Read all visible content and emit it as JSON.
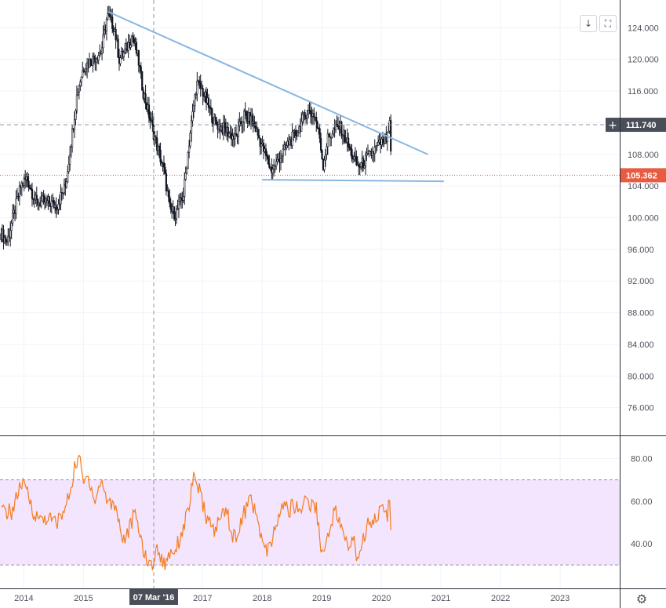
{
  "chart_data": [
    {
      "type": "candlestick",
      "series_name": "",
      "x_axis": {
        "ticks": [
          "2014",
          "2015",
          "2016",
          "2017",
          "2018",
          "2019",
          "2020",
          "2021",
          "2022",
          "2023"
        ],
        "range": [
          "2013.6",
          "2024.0"
        ]
      },
      "y_axis": {
        "ticks": [
          "76.000",
          "80.000",
          "84.000",
          "88.000",
          "92.000",
          "96.000",
          "100.000",
          "104.000",
          "108.000",
          "112.000",
          "116.000",
          "120.000",
          "124.000"
        ],
        "range": [
          72.5,
          127.5
        ]
      },
      "anchors": [
        {
          "t": 2013.62,
          "v": 98
        },
        {
          "t": 2013.72,
          "v": 97
        },
        {
          "t": 2013.85,
          "v": 101
        },
        {
          "t": 2013.95,
          "v": 104
        },
        {
          "t": 2014.05,
          "v": 105
        },
        {
          "t": 2014.2,
          "v": 102
        },
        {
          "t": 2014.4,
          "v": 102
        },
        {
          "t": 2014.55,
          "v": 101.5
        },
        {
          "t": 2014.7,
          "v": 104
        },
        {
          "t": 2014.8,
          "v": 110
        },
        {
          "t": 2014.9,
          "v": 116
        },
        {
          "t": 2015.0,
          "v": 119
        },
        {
          "t": 2015.15,
          "v": 120
        },
        {
          "t": 2015.3,
          "v": 121
        },
        {
          "t": 2015.4,
          "v": 125.5
        },
        {
          "t": 2015.52,
          "v": 124
        },
        {
          "t": 2015.6,
          "v": 120
        },
        {
          "t": 2015.7,
          "v": 121
        },
        {
          "t": 2015.82,
          "v": 123
        },
        {
          "t": 2015.92,
          "v": 120
        },
        {
          "t": 2016.0,
          "v": 116
        },
        {
          "t": 2016.1,
          "v": 113
        },
        {
          "t": 2016.2,
          "v": 110
        },
        {
          "t": 2016.35,
          "v": 106
        },
        {
          "t": 2016.45,
          "v": 101
        },
        {
          "t": 2016.55,
          "v": 100.5
        },
        {
          "t": 2016.68,
          "v": 103
        },
        {
          "t": 2016.78,
          "v": 110
        },
        {
          "t": 2016.9,
          "v": 117
        },
        {
          "t": 2017.0,
          "v": 116
        },
        {
          "t": 2017.2,
          "v": 112
        },
        {
          "t": 2017.4,
          "v": 111
        },
        {
          "t": 2017.55,
          "v": 110
        },
        {
          "t": 2017.7,
          "v": 113
        },
        {
          "t": 2017.85,
          "v": 112
        },
        {
          "t": 2017.95,
          "v": 110
        },
        {
          "t": 2018.05,
          "v": 108
        },
        {
          "t": 2018.15,
          "v": 106
        },
        {
          "t": 2018.25,
          "v": 107
        },
        {
          "t": 2018.45,
          "v": 109.5
        },
        {
          "t": 2018.6,
          "v": 111
        },
        {
          "t": 2018.75,
          "v": 113.5
        },
        {
          "t": 2018.88,
          "v": 113
        },
        {
          "t": 2018.97,
          "v": 110
        },
        {
          "t": 2019.02,
          "v": 106.5
        },
        {
          "t": 2019.1,
          "v": 110
        },
        {
          "t": 2019.2,
          "v": 111
        },
        {
          "t": 2019.3,
          "v": 111.5
        },
        {
          "t": 2019.4,
          "v": 110
        },
        {
          "t": 2019.5,
          "v": 108
        },
        {
          "t": 2019.6,
          "v": 106.5
        },
        {
          "t": 2019.68,
          "v": 106.8
        },
        {
          "t": 2019.8,
          "v": 107.8
        },
        {
          "t": 2019.92,
          "v": 108.8
        },
        {
          "t": 2020.0,
          "v": 109.5
        },
        {
          "t": 2020.1,
          "v": 110
        },
        {
          "t": 2020.14,
          "v": 111.7
        },
        {
          "t": 2020.17,
          "v": 105.4
        }
      ],
      "trendlines": [
        {
          "from": {
            "t": 2015.42,
            "v": 126.0
          },
          "to": {
            "t": 2020.78,
            "v": 108.0
          }
        },
        {
          "from": {
            "t": 2018.0,
            "v": 104.8
          },
          "to": {
            "t": 2021.05,
            "v": 104.6
          }
        }
      ],
      "price_lines": [
        {
          "value": 111.74,
          "label": "111.740",
          "style": "crosshair"
        },
        {
          "value": 105.362,
          "label": "105.362",
          "style": "last-price"
        }
      ],
      "crosshair_x_label": "07 Mar '16",
      "crosshair_t": 2016.18
    },
    {
      "type": "line",
      "indicator": "RSI",
      "y_axis": {
        "ticks": [
          "40.00",
          "60.00",
          "80.00"
        ],
        "range": [
          19,
          90.5
        ]
      },
      "band": {
        "lower": 30,
        "upper": 70
      },
      "anchors": [
        {
          "t": 2013.62,
          "v": 55
        },
        {
          "t": 2013.8,
          "v": 55
        },
        {
          "t": 2013.95,
          "v": 68
        },
        {
          "t": 2014.05,
          "v": 65
        },
        {
          "t": 2014.2,
          "v": 52
        },
        {
          "t": 2014.4,
          "v": 52
        },
        {
          "t": 2014.55,
          "v": 50
        },
        {
          "t": 2014.68,
          "v": 55
        },
        {
          "t": 2014.78,
          "v": 65
        },
        {
          "t": 2014.85,
          "v": 75
        },
        {
          "t": 2014.92,
          "v": 82
        },
        {
          "t": 2015.0,
          "v": 68
        },
        {
          "t": 2015.08,
          "v": 72
        },
        {
          "t": 2015.2,
          "v": 60
        },
        {
          "t": 2015.3,
          "v": 70
        },
        {
          "t": 2015.4,
          "v": 60
        },
        {
          "t": 2015.55,
          "v": 58
        },
        {
          "t": 2015.65,
          "v": 42
        },
        {
          "t": 2015.75,
          "v": 45
        },
        {
          "t": 2015.85,
          "v": 54
        },
        {
          "t": 2015.95,
          "v": 45
        },
        {
          "t": 2016.05,
          "v": 32
        },
        {
          "t": 2016.15,
          "v": 30
        },
        {
          "t": 2016.25,
          "v": 38
        },
        {
          "t": 2016.35,
          "v": 30
        },
        {
          "t": 2016.45,
          "v": 36
        },
        {
          "t": 2016.55,
          "v": 38
        },
        {
          "t": 2016.65,
          "v": 45
        },
        {
          "t": 2016.75,
          "v": 55
        },
        {
          "t": 2016.85,
          "v": 70
        },
        {
          "t": 2016.92,
          "v": 68
        },
        {
          "t": 2017.0,
          "v": 58
        },
        {
          "t": 2017.1,
          "v": 50
        },
        {
          "t": 2017.2,
          "v": 46
        },
        {
          "t": 2017.3,
          "v": 52
        },
        {
          "t": 2017.4,
          "v": 58
        },
        {
          "t": 2017.5,
          "v": 42
        },
        {
          "t": 2017.6,
          "v": 46
        },
        {
          "t": 2017.72,
          "v": 56
        },
        {
          "t": 2017.82,
          "v": 62
        },
        {
          "t": 2017.9,
          "v": 52
        },
        {
          "t": 2018.0,
          "v": 42
        },
        {
          "t": 2018.08,
          "v": 35
        },
        {
          "t": 2018.15,
          "v": 40
        },
        {
          "t": 2018.25,
          "v": 50
        },
        {
          "t": 2018.35,
          "v": 58
        },
        {
          "t": 2018.45,
          "v": 56
        },
        {
          "t": 2018.55,
          "v": 58
        },
        {
          "t": 2018.65,
          "v": 55
        },
        {
          "t": 2018.72,
          "v": 63
        },
        {
          "t": 2018.8,
          "v": 58
        },
        {
          "t": 2018.9,
          "v": 58
        },
        {
          "t": 2018.95,
          "v": 48
        },
        {
          "t": 2019.0,
          "v": 35
        },
        {
          "t": 2019.08,
          "v": 40
        },
        {
          "t": 2019.15,
          "v": 50
        },
        {
          "t": 2019.22,
          "v": 56
        },
        {
          "t": 2019.3,
          "v": 50
        },
        {
          "t": 2019.38,
          "v": 42
        },
        {
          "t": 2019.46,
          "v": 38
        },
        {
          "t": 2019.52,
          "v": 44
        },
        {
          "t": 2019.58,
          "v": 34
        },
        {
          "t": 2019.66,
          "v": 38
        },
        {
          "t": 2019.75,
          "v": 48
        },
        {
          "t": 2019.85,
          "v": 52
        },
        {
          "t": 2019.95,
          "v": 54
        },
        {
          "t": 2020.05,
          "v": 57
        },
        {
          "t": 2020.1,
          "v": 53
        },
        {
          "t": 2020.14,
          "v": 62
        },
        {
          "t": 2020.17,
          "v": 39
        }
      ]
    }
  ],
  "toolbar": {
    "download_icon": "↓",
    "fullscreen_icon": "⛶",
    "settings_icon": "⚙"
  },
  "colors": {
    "candle": "#131722",
    "trend": "#8ab6e0",
    "rsi_line": "#f57c20",
    "rsi_band": "#f3e5fd",
    "last_price": "#e85b41",
    "crosshair_badge": "#4a4e59",
    "grid": "#f0f3fa"
  }
}
